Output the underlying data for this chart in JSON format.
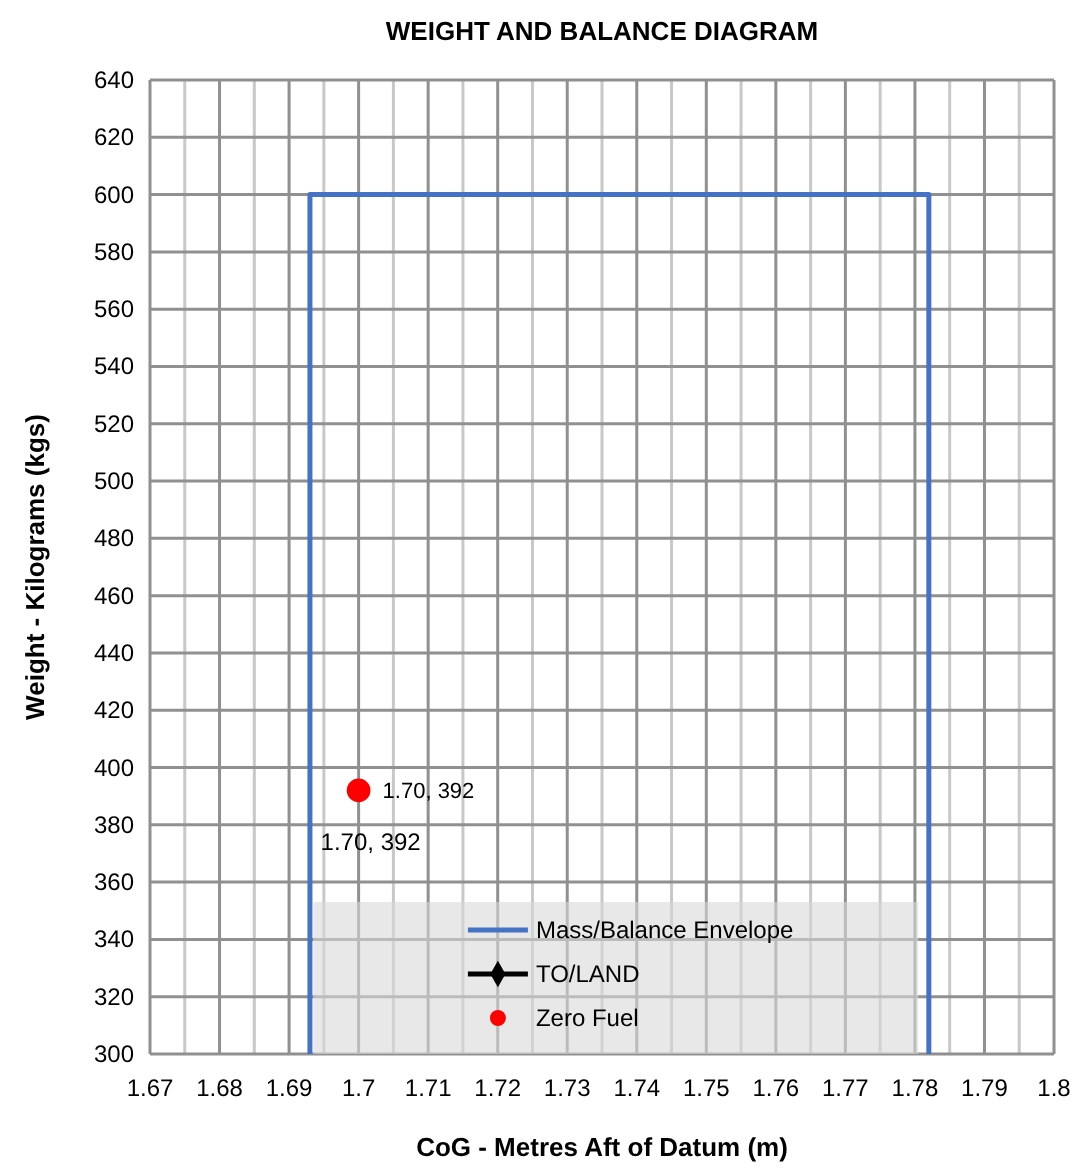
{
  "chart_data": {
    "type": "line",
    "title": "WEIGHT AND BALANCE DIAGRAM",
    "xlabel": "CoG - Metres Aft of Datum (m)",
    "ylabel": "Weight - Kilograms (kgs)",
    "xlim": [
      1.67,
      1.8
    ],
    "ylim": [
      300,
      640
    ],
    "xticks": [
      {
        "value": 1.67,
        "label": "1.67"
      },
      {
        "value": 1.675,
        "label": null
      },
      {
        "value": 1.68,
        "label": "1.68"
      },
      {
        "value": 1.685,
        "label": null
      },
      {
        "value": 1.69,
        "label": "1.69"
      },
      {
        "value": 1.695,
        "label": null
      },
      {
        "value": 1.7,
        "label": "1.7"
      },
      {
        "value": 1.705,
        "label": null
      },
      {
        "value": 1.71,
        "label": "1.71"
      },
      {
        "value": 1.715,
        "label": null
      },
      {
        "value": 1.72,
        "label": "1.72"
      },
      {
        "value": 1.725,
        "label": null
      },
      {
        "value": 1.73,
        "label": "1.73"
      },
      {
        "value": 1.735,
        "label": null
      },
      {
        "value": 1.74,
        "label": "1.74"
      },
      {
        "value": 1.745,
        "label": null
      },
      {
        "value": 1.75,
        "label": "1.75"
      },
      {
        "value": 1.755,
        "label": null
      },
      {
        "value": 1.76,
        "label": "1.76"
      },
      {
        "value": 1.765,
        "label": null
      },
      {
        "value": 1.77,
        "label": "1.77"
      },
      {
        "value": 1.775,
        "label": null
      },
      {
        "value": 1.78,
        "label": "1.78"
      },
      {
        "value": 1.785,
        "label": null
      },
      {
        "value": 1.79,
        "label": "1.79"
      },
      {
        "value": 1.795,
        "label": null
      },
      {
        "value": 1.8,
        "label": "1.8"
      }
    ],
    "yticks": [
      300,
      320,
      340,
      360,
      380,
      400,
      420,
      440,
      460,
      480,
      500,
      520,
      540,
      560,
      580,
      600,
      620,
      640
    ],
    "grid": true,
    "legend": "bottom",
    "annotations": [
      {
        "text": "1.70, 392",
        "x": 1.7,
        "y": 392
      }
    ],
    "series": [
      {
        "name": "Mass/Balance Envelope",
        "color": "#4472c4",
        "marker": "none",
        "x": [
          1.693,
          1.693,
          1.782,
          1.782
        ],
        "values": [
          300,
          600,
          600,
          300
        ]
      },
      {
        "name": "TO/LAND",
        "type": "line",
        "color": "#000000",
        "marker": "diamond"
      },
      {
        "name": "Zero Fuel",
        "type": "scatter",
        "color": "#ff0000",
        "marker": "circle",
        "x": [
          1.7
        ],
        "values": [
          392
        ],
        "value_labels": [
          "1.70, 392"
        ]
      }
    ]
  }
}
